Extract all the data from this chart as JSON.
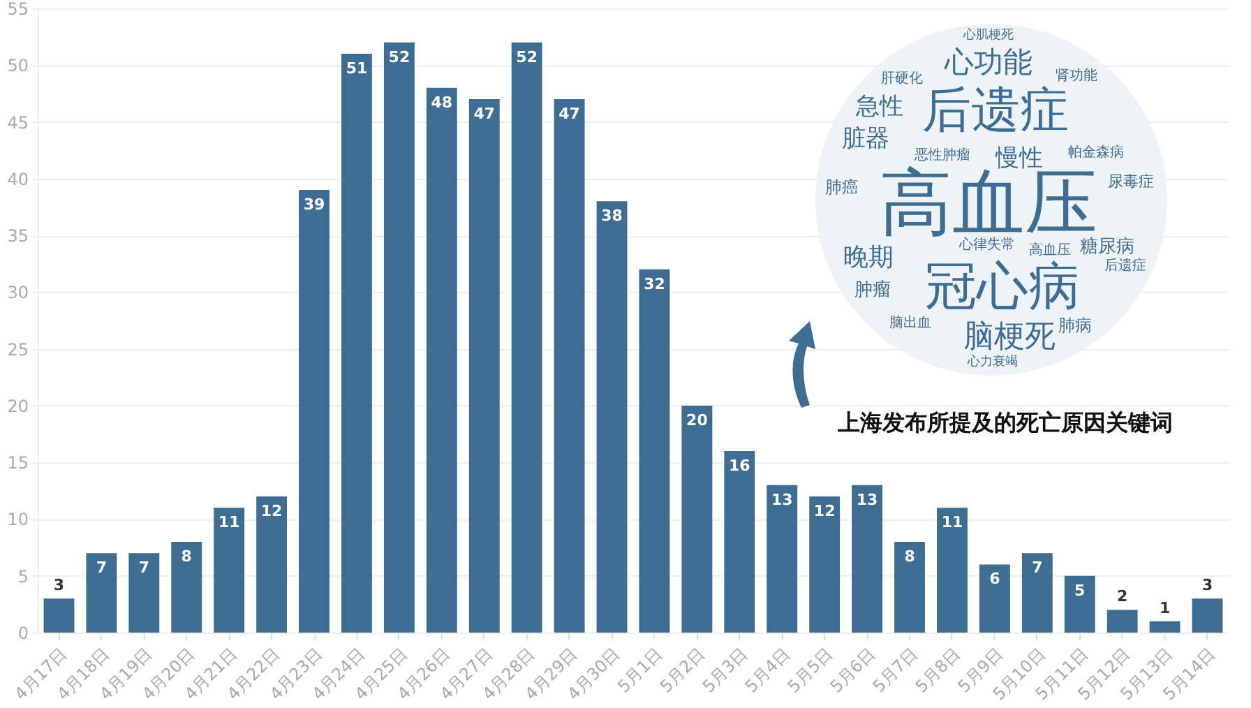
{
  "chart_data": {
    "type": "bar",
    "categories": [
      "4月17日",
      "4月18日",
      "4月19日",
      "4月20日",
      "4月21日",
      "4月22日",
      "4月23日",
      "4月24日",
      "4月25日",
      "4月26日",
      "4月27日",
      "4月28日",
      "4月29日",
      "4月30日",
      "5月1日",
      "5月2日",
      "5月3日",
      "5月4日",
      "5月5日",
      "5月6日",
      "5月7日",
      "5月8日",
      "5月9日",
      "5月10日",
      "5月11日",
      "5月12日",
      "5月13日",
      "5月14日"
    ],
    "values": [
      3,
      7,
      7,
      8,
      11,
      12,
      39,
      51,
      52,
      48,
      47,
      52,
      47,
      38,
      32,
      20,
      16,
      13,
      12,
      13,
      8,
      11,
      6,
      7,
      5,
      2,
      1,
      3
    ],
    "color": "#3e6d94",
    "ylim": [
      0,
      55
    ],
    "yticks": [
      0,
      5,
      10,
      15,
      20,
      25,
      30,
      35,
      40,
      45,
      50,
      55
    ],
    "grid": "y",
    "data_labels": true,
    "annotations": [
      "心肌梗死",
      "心功能",
      "肝硬化",
      "肾功能",
      "急性",
      "后遗症",
      "脏器",
      "恶性肿瘤",
      "慢性",
      "帕金森病",
      "肺癌",
      "高血压",
      "尿毒症",
      "心律失常",
      "高血压",
      "糖尿病",
      "晚期",
      "后遗症",
      "肿瘤",
      "冠心病",
      "脑出血",
      "脑梗死",
      "肺病",
      "心力衰竭",
      "上海发布所提及的死亡原因关键词"
    ]
  }
}
